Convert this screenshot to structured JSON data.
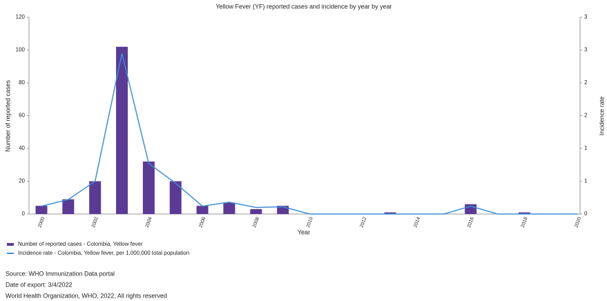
{
  "chart_data": {
    "type": "bar-line",
    "title": "Yellow Fever (YF) reported cases and incidence by year by year",
    "x_label": "Year",
    "y_label": "Number of reported cases",
    "y2_label": "Incidence rate",
    "categories": [
      "2000",
      null,
      "2002",
      null,
      "2004",
      null,
      "2006",
      null,
      "2008",
      null,
      "2010",
      null,
      "2012",
      null,
      "2014",
      null,
      "2016",
      null,
      "2018",
      null,
      "2020"
    ],
    "series": [
      {
        "name": "Number of reported cases - Colombia, Yellow fever",
        "color": "#5b3a96",
        "kind": "bar",
        "values": [
          5,
          9,
          20,
          102,
          32,
          20,
          5,
          7,
          3,
          5,
          0,
          0,
          0,
          1,
          0,
          0,
          6,
          0,
          1,
          0,
          0
        ]
      },
      {
        "name": "Incidence rate - Colombia, Yellow fever, per 1,000,000 total population",
        "color": "#3a8fd6",
        "kind": "line",
        "axis": "y2",
        "values": [
          0.12,
          0.22,
          0.5,
          2.45,
          0.77,
          0.47,
          0.12,
          0.18,
          0.1,
          0.11,
          0,
          0,
          0,
          0,
          0,
          0,
          0.12,
          0,
          0,
          0,
          0
        ]
      }
    ],
    "ylim": [
      0,
      120
    ],
    "yticks": [
      0,
      20,
      40,
      60,
      80,
      100,
      120
    ],
    "y2lim": [
      0,
      3
    ],
    "y2ticks": [
      0,
      {
        "value": 0.5,
        "label": "1"
      },
      1,
      {
        "value": 1.5,
        "label": "2"
      },
      2,
      {
        "value": 2.5,
        "label": "3"
      },
      3
    ],
    "grid": false,
    "footer": [
      "Source: WHO Immunization Data portal",
      "Date of export: 3/4/2022",
      "World Health Organization, WHO, 2022, All rights reserved"
    ]
  }
}
